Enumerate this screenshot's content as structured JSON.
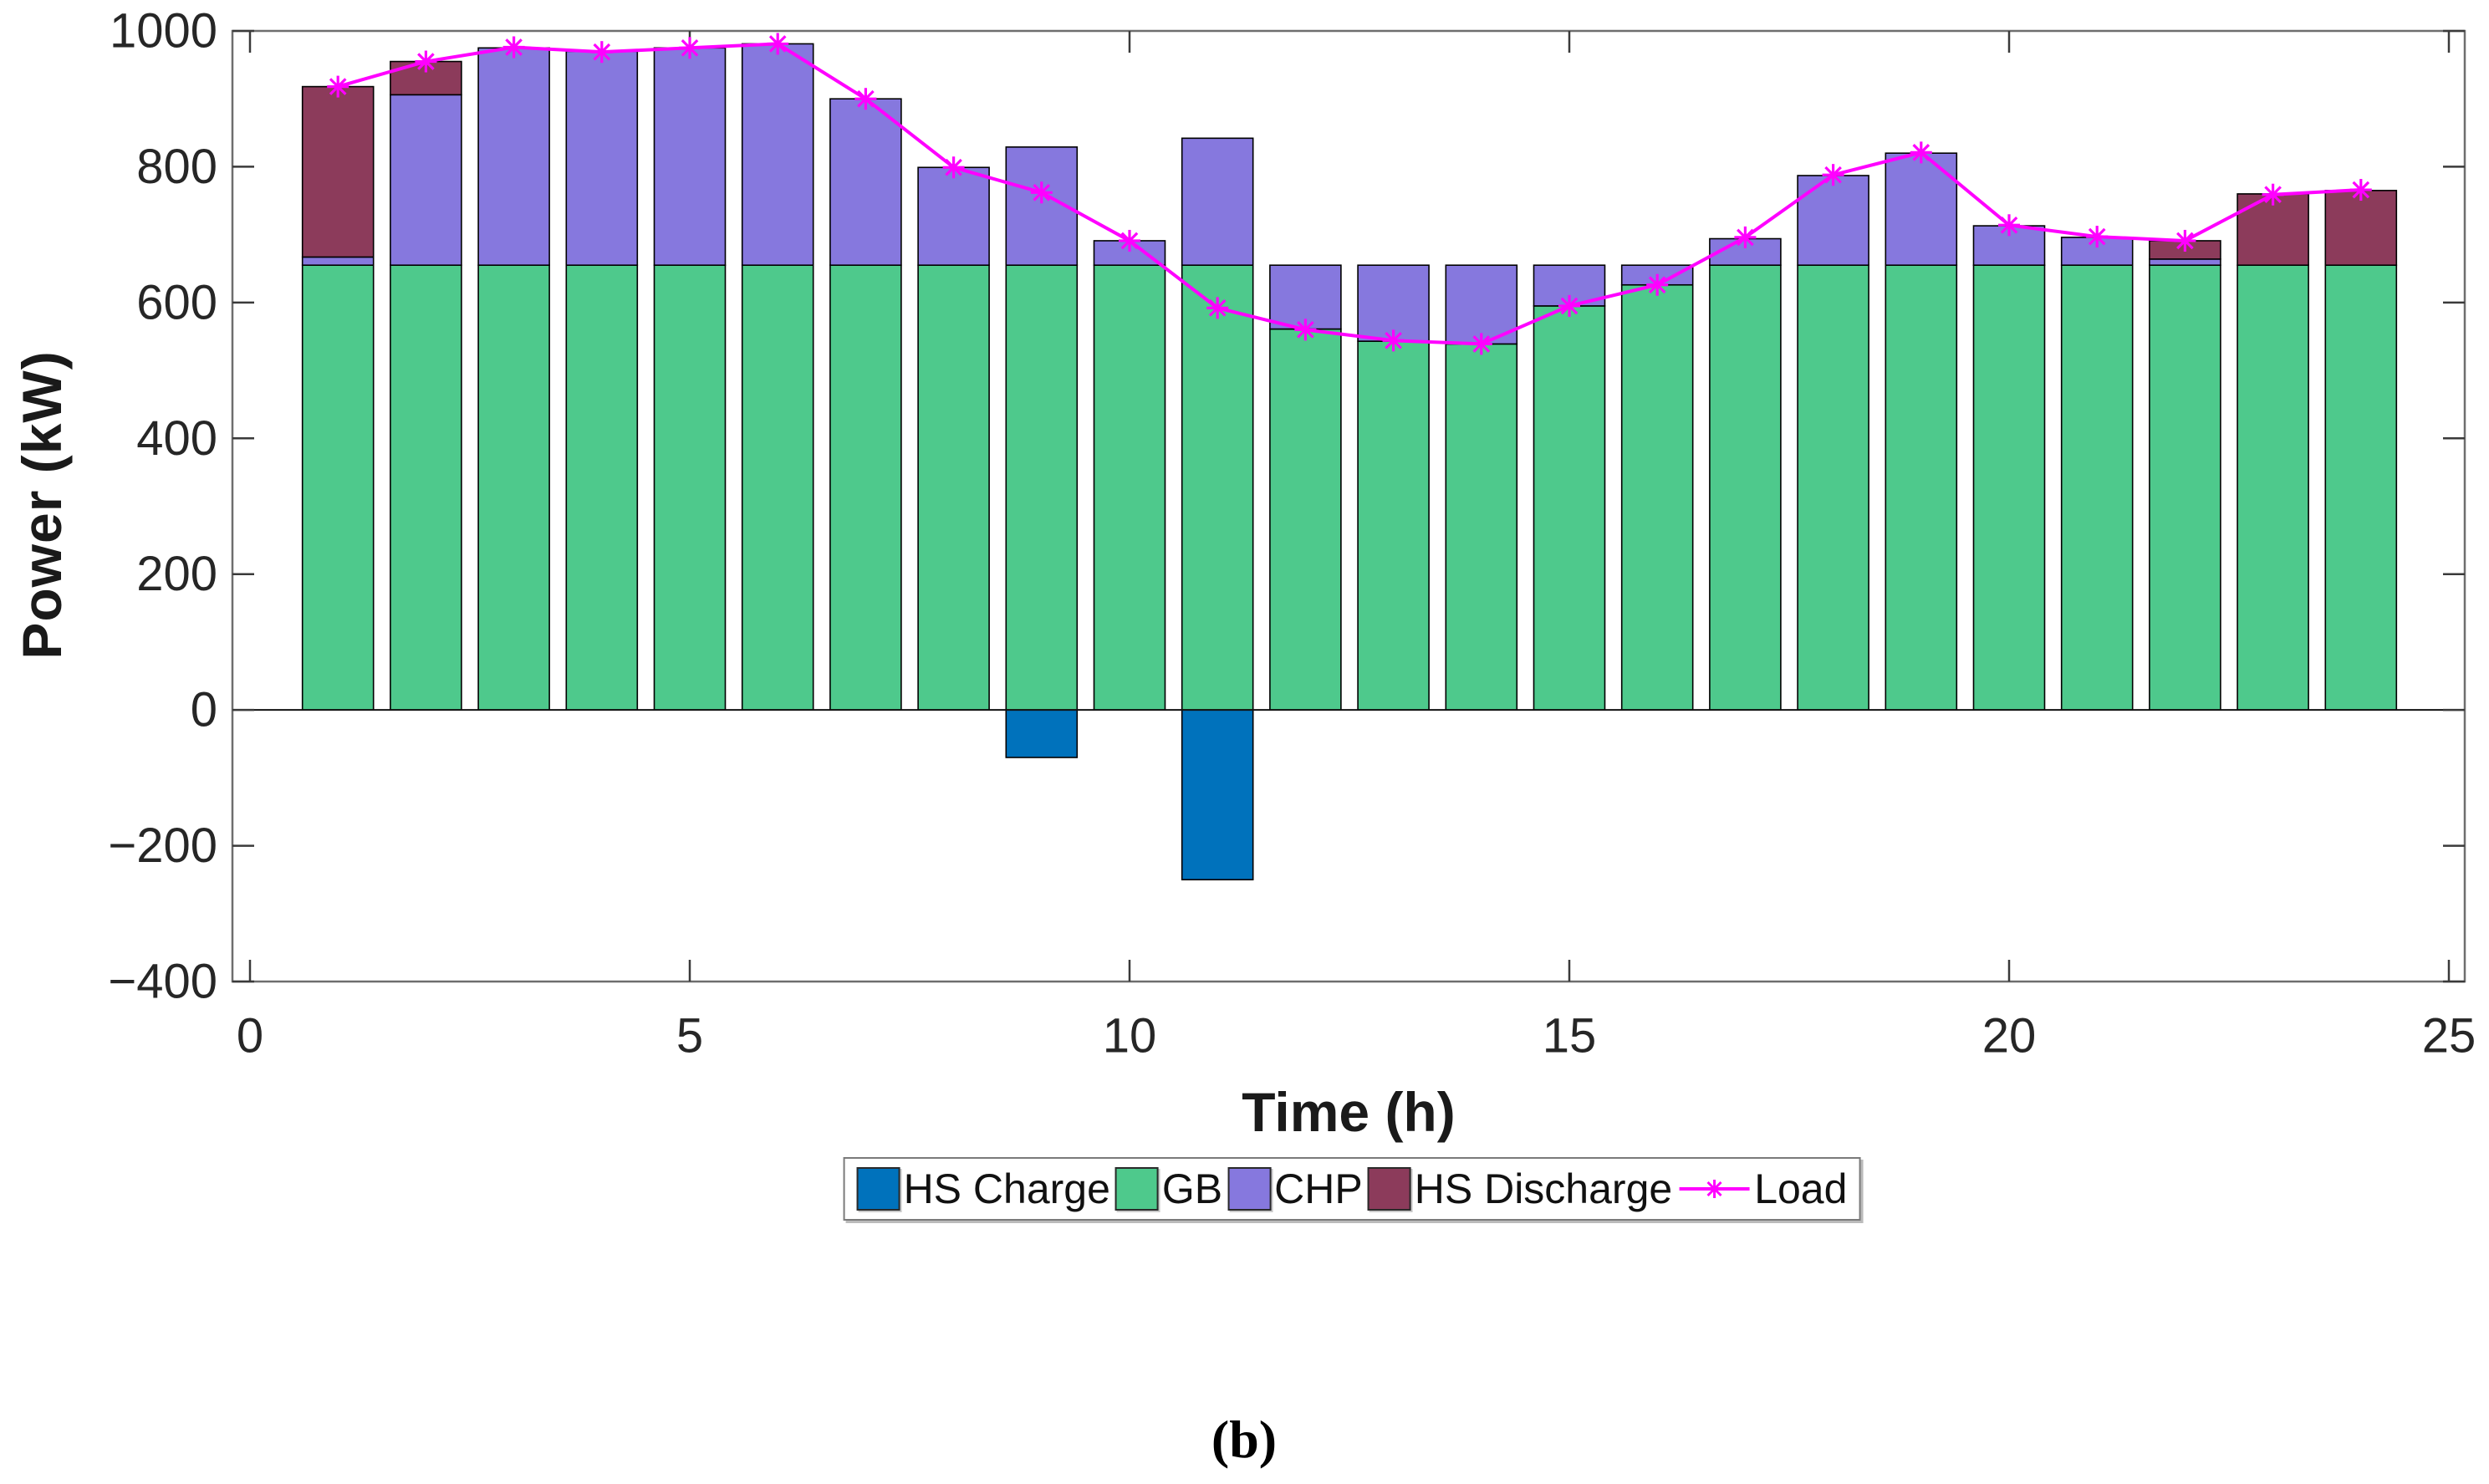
{
  "figure": {
    "ylabel": "Power (kW)",
    "xlabel": "Time (h)",
    "caption": "(b)"
  },
  "colors": {
    "hs_charge": "#0072BC",
    "gb": "#4EC98C",
    "chp": "#8678DE",
    "hs_discharge": "#8C3B5B",
    "load": "#FF00FF",
    "axis_box": "#6E6E6E",
    "tick_mark": "#3A3A3A",
    "tick_text": "#262626",
    "bar_edge": "#000000",
    "zero_line": "#111111"
  },
  "chart_data": {
    "type": "bar",
    "subtype": "stacked-bars-with-line-overlay",
    "title": "",
    "xlabel": "Time (h)",
    "ylabel": "Power (kW)",
    "x": [
      1,
      2,
      3,
      4,
      5,
      6,
      7,
      8,
      9,
      10,
      11,
      12,
      13,
      14,
      15,
      16,
      17,
      18,
      19,
      20,
      21,
      22,
      23,
      24
    ],
    "series": [
      {
        "name": "HS Charge",
        "role": "bar",
        "color_key": "hs_charge",
        "values": [
          0,
          0,
          0,
          0,
          0,
          0,
          0,
          0,
          -70,
          0,
          -250,
          0,
          0,
          0,
          0,
          0,
          0,
          0,
          0,
          0,
          0,
          0,
          0,
          0
        ]
      },
      {
        "name": "GB",
        "role": "bar",
        "color_key": "gb",
        "values": [
          655,
          655,
          655,
          655,
          655,
          655,
          655,
          655,
          655,
          655,
          655,
          561,
          543,
          539,
          595,
          626,
          655,
          655,
          655,
          655,
          655,
          655,
          655,
          655
        ]
      },
      {
        "name": "CHP",
        "role": "bar",
        "color_key": "chp",
        "values": [
          12,
          251,
          320,
          315,
          320,
          326,
          245,
          144,
          174,
          36,
          187,
          94,
          112,
          116,
          60,
          29,
          39,
          132,
          165,
          58,
          41,
          9,
          0,
          0
        ]
      },
      {
        "name": "HS Discharge",
        "role": "bar",
        "color_key": "hs_discharge",
        "values": [
          251,
          49,
          0,
          0,
          0,
          0,
          0,
          0,
          0,
          0,
          0,
          0,
          0,
          0,
          0,
          0,
          0,
          0,
          0,
          0,
          0,
          27,
          105,
          110
        ]
      },
      {
        "name": "Load",
        "role": "line",
        "color_key": "load",
        "marker": "asterisk",
        "values": [
          918,
          955,
          976,
          969,
          975,
          981,
          900,
          799,
          762,
          691,
          592,
          560,
          544,
          539,
          595,
          626,
          696,
          788,
          821,
          714,
          697,
          691,
          759,
          766
        ]
      }
    ],
    "xticks": [
      0,
      5,
      10,
      15,
      20,
      25
    ],
    "yticks": [
      -400,
      -200,
      0,
      200,
      400,
      600,
      800,
      1000
    ],
    "xlim": [
      -0.2,
      25.2
    ],
    "ylim": [
      -400,
      1000
    ],
    "grid": false,
    "legend_position": "bottom-center"
  },
  "legend": {
    "items": [
      {
        "label": "HS Charge",
        "glyph": "patch",
        "color_key": "hs_charge"
      },
      {
        "label": "GB",
        "glyph": "patch",
        "color_key": "gb"
      },
      {
        "label": "CHP",
        "glyph": "patch",
        "color_key": "chp"
      },
      {
        "label": "HS Discharge",
        "glyph": "patch",
        "color_key": "hs_discharge"
      },
      {
        "label": "Load",
        "glyph": "line-asterisk",
        "color_key": "load"
      }
    ]
  }
}
